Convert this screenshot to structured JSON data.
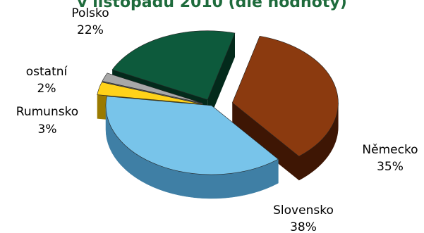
{
  "chart_data": {
    "type": "pie",
    "title": "v listopadu 2010 (dle hodnoty)",
    "three_d": true,
    "exploded": true,
    "slices": [
      {
        "label": "Německo",
        "percent_label": "35%",
        "value": 35,
        "color": "#8b3a0f",
        "side_color": "#3e1604"
      },
      {
        "label": "Slovensko",
        "percent_label": "38%",
        "value": 38,
        "color": "#78c4ea",
        "side_color": "#3f7fa5"
      },
      {
        "label": "Rumunsko",
        "percent_label": "3%",
        "value": 3,
        "color": "#ffd219",
        "side_color": "#9a7a00"
      },
      {
        "label": "ostatní",
        "percent_label": "2%",
        "value": 2,
        "color": "#a8a8a8",
        "side_color": "#5a5a5a"
      },
      {
        "label": "Polsko",
        "percent_label": "22%",
        "value": 22,
        "color": "#0d5a3c",
        "side_color": "#032a1b"
      }
    ]
  }
}
